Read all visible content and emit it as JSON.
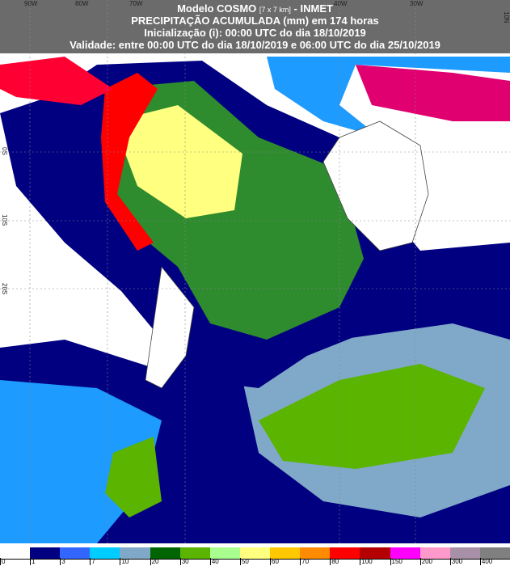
{
  "header": {
    "model": "Modelo COSMO",
    "resolution": "[7 x 7 km]",
    "org": "- INMET",
    "product": "PRECIPITAÇÃO ACUMULADA (mm) em 174 horas",
    "init": "Inicialização (i): 00:00 UTC do dia 18/10/2019",
    "validity": "Validade: entre 00:00 UTC do dia 18/10/2019 e 06:00 UTC do dia 25/10/2019"
  },
  "axes": {
    "lon_labels": [
      "90W",
      "80W",
      "70W",
      "40W",
      "30W"
    ],
    "lat_labels_left": [
      "0S",
      "10S",
      "20S"
    ],
    "lat_label_right": "10N"
  },
  "legend": {
    "unit": "mm",
    "ticks": [
      "0",
      "1",
      "3",
      "7",
      "10",
      "20",
      "30",
      "40",
      "50",
      "60",
      "70",
      "80",
      "100",
      "150",
      "200",
      "300",
      "400"
    ],
    "colors": [
      "#ffffff",
      "#000080",
      "#3366ff",
      "#00ccff",
      "#80a8c8",
      "#006400",
      "#5ab400",
      "#a8ff90",
      "#ffff80",
      "#ffc800",
      "#ff8c00",
      "#ff0000",
      "#b40000",
      "#ff00ff",
      "#ff99cc",
      "#a890a8",
      "#808080"
    ]
  }
}
